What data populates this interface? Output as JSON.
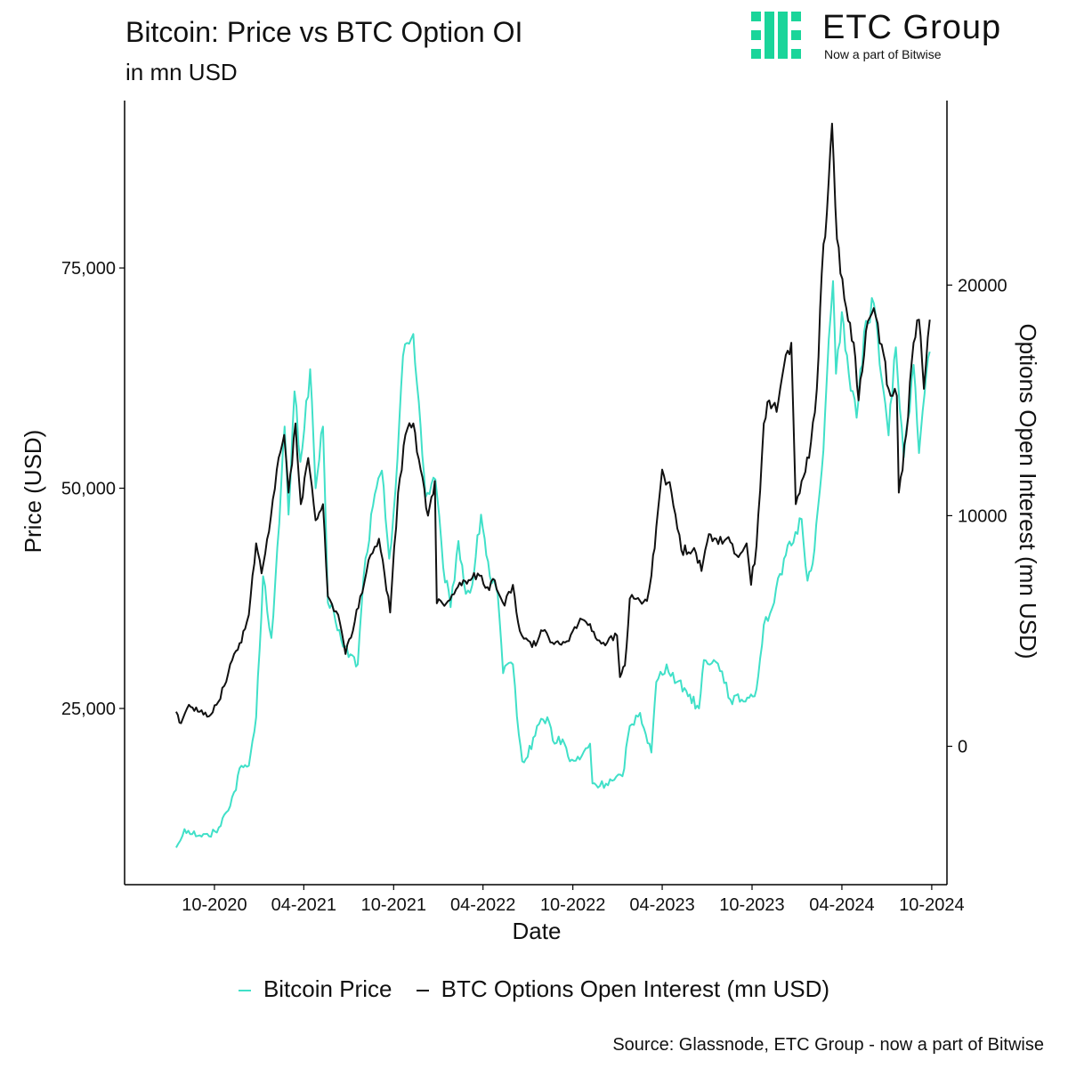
{
  "header": {
    "title": "Bitcoin: Price vs BTC Option OI",
    "subtitle": "in mn USD"
  },
  "logo": {
    "name": "ETC Group",
    "tagline": "Now a part of Bitwise",
    "mark_icon": "etc-group-logo-mark-icon",
    "color": "#1ad59a"
  },
  "source": "Source: Glassnode, ETC Group - now a part of Bitwise",
  "chart_data": {
    "type": "line",
    "title": "Bitcoin: Price vs BTC Option OI",
    "subtitle": "in mn USD",
    "xlabel": "Date",
    "ylabel": "Price (USD)",
    "y2label": "Options Open Interest (mn USD)",
    "x_ticks": [
      "10-2020",
      "04-2021",
      "10-2021",
      "04-2022",
      "10-2022",
      "04-2023",
      "10-2023",
      "04-2024",
      "10-2024"
    ],
    "y_ticks": [
      "25,000",
      "50,000",
      "75,000"
    ],
    "y_tick_values": [
      25000,
      50000,
      75000
    ],
    "y2_ticks": [
      "0",
      "10000",
      "20000"
    ],
    "y2_tick_values": [
      0,
      10000,
      20000
    ],
    "xlim": [
      "2020-04-01",
      "2024-11-01"
    ],
    "ylim": [
      5000,
      94000
    ],
    "y2lim": [
      -6000,
      28000
    ],
    "grid": false,
    "legend_position": "bottom",
    "series": [
      {
        "name": "Bitcoin Price",
        "axis": "left",
        "color": "#40e0c8",
        "points": [
          [
            "2020-07-15",
            9200
          ],
          [
            "2020-08-01",
            11300
          ],
          [
            "2020-09-01",
            10600
          ],
          [
            "2020-09-20",
            10500
          ],
          [
            "2020-10-10",
            11500
          ],
          [
            "2020-10-25",
            13200
          ],
          [
            "2020-11-10",
            15500
          ],
          [
            "2020-11-25",
            18500
          ],
          [
            "2020-12-10",
            18500
          ],
          [
            "2020-12-25",
            24000
          ],
          [
            "2021-01-08",
            40000
          ],
          [
            "2021-01-25",
            33000
          ],
          [
            "2021-02-10",
            46000
          ],
          [
            "2021-02-21",
            57000
          ],
          [
            "2021-03-01",
            47000
          ],
          [
            "2021-03-13",
            61000
          ],
          [
            "2021-03-25",
            53000
          ],
          [
            "2021-04-14",
            63500
          ],
          [
            "2021-04-25",
            50000
          ],
          [
            "2021-05-10",
            57000
          ],
          [
            "2021-05-20",
            37000
          ],
          [
            "2021-06-01",
            36000
          ],
          [
            "2021-06-20",
            32000
          ],
          [
            "2021-07-20",
            30000
          ],
          [
            "2021-08-01",
            40000
          ],
          [
            "2021-08-20",
            48000
          ],
          [
            "2021-09-07",
            52000
          ],
          [
            "2021-09-22",
            42000
          ],
          [
            "2021-10-05",
            50000
          ],
          [
            "2021-10-20",
            65000
          ],
          [
            "2021-11-10",
            67500
          ],
          [
            "2021-11-25",
            57000
          ],
          [
            "2021-12-05",
            49000
          ],
          [
            "2021-12-25",
            51000
          ],
          [
            "2022-01-10",
            41000
          ],
          [
            "2022-01-25",
            36500
          ],
          [
            "2022-02-10",
            44000
          ],
          [
            "2022-02-25",
            38000
          ],
          [
            "2022-03-10",
            39000
          ],
          [
            "2022-03-28",
            47000
          ],
          [
            "2022-04-15",
            40000
          ],
          [
            "2022-05-01",
            38000
          ],
          [
            "2022-05-12",
            29000
          ],
          [
            "2022-06-01",
            30000
          ],
          [
            "2022-06-13",
            22000
          ],
          [
            "2022-06-20",
            19000
          ],
          [
            "2022-07-01",
            19500
          ],
          [
            "2022-07-20",
            23000
          ],
          [
            "2022-08-10",
            24000
          ],
          [
            "2022-08-25",
            21000
          ],
          [
            "2022-09-10",
            21500
          ],
          [
            "2022-09-25",
            19000
          ],
          [
            "2022-10-15",
            19200
          ],
          [
            "2022-11-05",
            21000
          ],
          [
            "2022-11-10",
            16500
          ],
          [
            "2022-11-25",
            16200
          ],
          [
            "2022-12-20",
            16800
          ],
          [
            "2023-01-10",
            17300
          ],
          [
            "2023-01-25",
            23000
          ],
          [
            "2023-02-15",
            24500
          ],
          [
            "2023-03-10",
            20000
          ],
          [
            "2023-03-20",
            28000
          ],
          [
            "2023-04-10",
            30000
          ],
          [
            "2023-05-01",
            28000
          ],
          [
            "2023-05-20",
            27000
          ],
          [
            "2023-06-15",
            25000
          ],
          [
            "2023-06-25",
            30500
          ],
          [
            "2023-07-15",
            30500
          ],
          [
            "2023-08-01",
            29200
          ],
          [
            "2023-08-18",
            26000
          ],
          [
            "2023-09-10",
            26000
          ],
          [
            "2023-09-25",
            26200
          ],
          [
            "2023-10-10",
            27200
          ],
          [
            "2023-10-25",
            34500
          ],
          [
            "2023-11-15",
            37000
          ],
          [
            "2023-12-05",
            42000
          ],
          [
            "2023-12-20",
            43500
          ],
          [
            "2024-01-10",
            46500
          ],
          [
            "2024-01-22",
            39500
          ],
          [
            "2024-02-05",
            43000
          ],
          [
            "2024-02-20",
            52000
          ],
          [
            "2024-03-01",
            62000
          ],
          [
            "2024-03-14",
            73500
          ],
          [
            "2024-03-20",
            63000
          ],
          [
            "2024-04-01",
            70000
          ],
          [
            "2024-04-15",
            63000
          ],
          [
            "2024-05-01",
            58000
          ],
          [
            "2024-05-20",
            69000
          ],
          [
            "2024-06-05",
            71000
          ],
          [
            "2024-06-25",
            61000
          ],
          [
            "2024-07-05",
            56000
          ],
          [
            "2024-07-20",
            66000
          ],
          [
            "2024-08-05",
            53500
          ],
          [
            "2024-08-25",
            64000
          ],
          [
            "2024-09-05",
            54000
          ],
          [
            "2024-09-20",
            63000
          ],
          [
            "2024-09-27",
            65500
          ]
        ]
      },
      {
        "name": "BTC Options Open Interest (mn USD)",
        "axis": "right",
        "color": "#111111",
        "points": [
          [
            "2020-07-15",
            1500
          ],
          [
            "2020-07-25",
            1000
          ],
          [
            "2020-08-10",
            1800
          ],
          [
            "2020-09-01",
            1500
          ],
          [
            "2020-09-20",
            1300
          ],
          [
            "2020-10-05",
            1800
          ],
          [
            "2020-10-25",
            2800
          ],
          [
            "2020-11-10",
            4000
          ],
          [
            "2020-11-25",
            4500
          ],
          [
            "2020-12-10",
            5700
          ],
          [
            "2020-12-25",
            8800
          ],
          [
            "2021-01-05",
            7500
          ],
          [
            "2021-01-20",
            9300
          ],
          [
            "2021-02-05",
            12000
          ],
          [
            "2021-02-20",
            13500
          ],
          [
            "2021-03-01",
            11000
          ],
          [
            "2021-03-15",
            14000
          ],
          [
            "2021-03-26",
            10500
          ],
          [
            "2021-04-10",
            12500
          ],
          [
            "2021-04-25",
            9800
          ],
          [
            "2021-05-10",
            10500
          ],
          [
            "2021-05-20",
            6500
          ],
          [
            "2021-06-10",
            5700
          ],
          [
            "2021-06-25",
            4000
          ],
          [
            "2021-07-10",
            5000
          ],
          [
            "2021-07-25",
            6500
          ],
          [
            "2021-08-15",
            8300
          ],
          [
            "2021-09-01",
            9000
          ],
          [
            "2021-09-24",
            5800
          ],
          [
            "2021-10-10",
            11000
          ],
          [
            "2021-10-25",
            13500
          ],
          [
            "2021-11-10",
            14000
          ],
          [
            "2021-11-25",
            12000
          ],
          [
            "2021-12-10",
            10000
          ],
          [
            "2021-12-24",
            11500
          ],
          [
            "2021-12-28",
            6200
          ],
          [
            "2022-01-20",
            6300
          ],
          [
            "2022-02-05",
            6800
          ],
          [
            "2022-02-20",
            7200
          ],
          [
            "2022-03-10",
            7300
          ],
          [
            "2022-03-25",
            7400
          ],
          [
            "2022-04-10",
            6900
          ],
          [
            "2022-04-25",
            7200
          ],
          [
            "2022-05-15",
            6100
          ],
          [
            "2022-06-01",
            7000
          ],
          [
            "2022-06-15",
            5000
          ],
          [
            "2022-07-10",
            4300
          ],
          [
            "2022-08-01",
            5000
          ],
          [
            "2022-08-20",
            4500
          ],
          [
            "2022-09-15",
            4500
          ],
          [
            "2022-10-01",
            5000
          ],
          [
            "2022-10-20",
            5500
          ],
          [
            "2022-11-05",
            5300
          ],
          [
            "2022-11-20",
            4600
          ],
          [
            "2022-12-10",
            4500
          ],
          [
            "2022-12-30",
            4800
          ],
          [
            "2023-01-05",
            3000
          ],
          [
            "2023-01-15",
            3500
          ],
          [
            "2023-01-25",
            6400
          ],
          [
            "2023-02-15",
            6300
          ],
          [
            "2023-03-01",
            6300
          ],
          [
            "2023-03-10",
            7400
          ],
          [
            "2023-03-20",
            9500
          ],
          [
            "2023-04-01",
            12000
          ],
          [
            "2023-04-20",
            11000
          ],
          [
            "2023-05-10",
            8500
          ],
          [
            "2023-06-05",
            8600
          ],
          [
            "2023-06-20",
            7600
          ],
          [
            "2023-07-05",
            9200
          ],
          [
            "2023-07-20",
            9000
          ],
          [
            "2023-08-10",
            9000
          ],
          [
            "2023-08-30",
            8300
          ],
          [
            "2023-09-20",
            8800
          ],
          [
            "2023-09-29",
            7000
          ],
          [
            "2023-10-10",
            8700
          ],
          [
            "2023-10-25",
            14000
          ],
          [
            "2023-11-05",
            15000
          ],
          [
            "2023-11-20",
            14500
          ],
          [
            "2023-12-05",
            16500
          ],
          [
            "2023-12-20",
            17500
          ],
          [
            "2023-12-29",
            10500
          ],
          [
            "2024-01-10",
            11500
          ],
          [
            "2024-01-25",
            12500
          ],
          [
            "2024-02-10",
            15500
          ],
          [
            "2024-02-20",
            20500
          ],
          [
            "2024-03-05",
            24500
          ],
          [
            "2024-03-12",
            27000
          ],
          [
            "2024-03-22",
            22000
          ],
          [
            "2024-03-29",
            20500
          ],
          [
            "2024-04-10",
            19000
          ],
          [
            "2024-04-25",
            17500
          ],
          [
            "2024-05-05",
            15000
          ],
          [
            "2024-05-20",
            18000
          ],
          [
            "2024-06-05",
            19000
          ],
          [
            "2024-06-25",
            17000
          ],
          [
            "2024-07-05",
            15500
          ],
          [
            "2024-07-22",
            15200
          ],
          [
            "2024-07-26",
            11000
          ],
          [
            "2024-08-10",
            13500
          ],
          [
            "2024-08-25",
            17500
          ],
          [
            "2024-09-05",
            18500
          ],
          [
            "2024-09-15",
            15500
          ],
          [
            "2024-09-27",
            18500
          ]
        ]
      }
    ]
  }
}
